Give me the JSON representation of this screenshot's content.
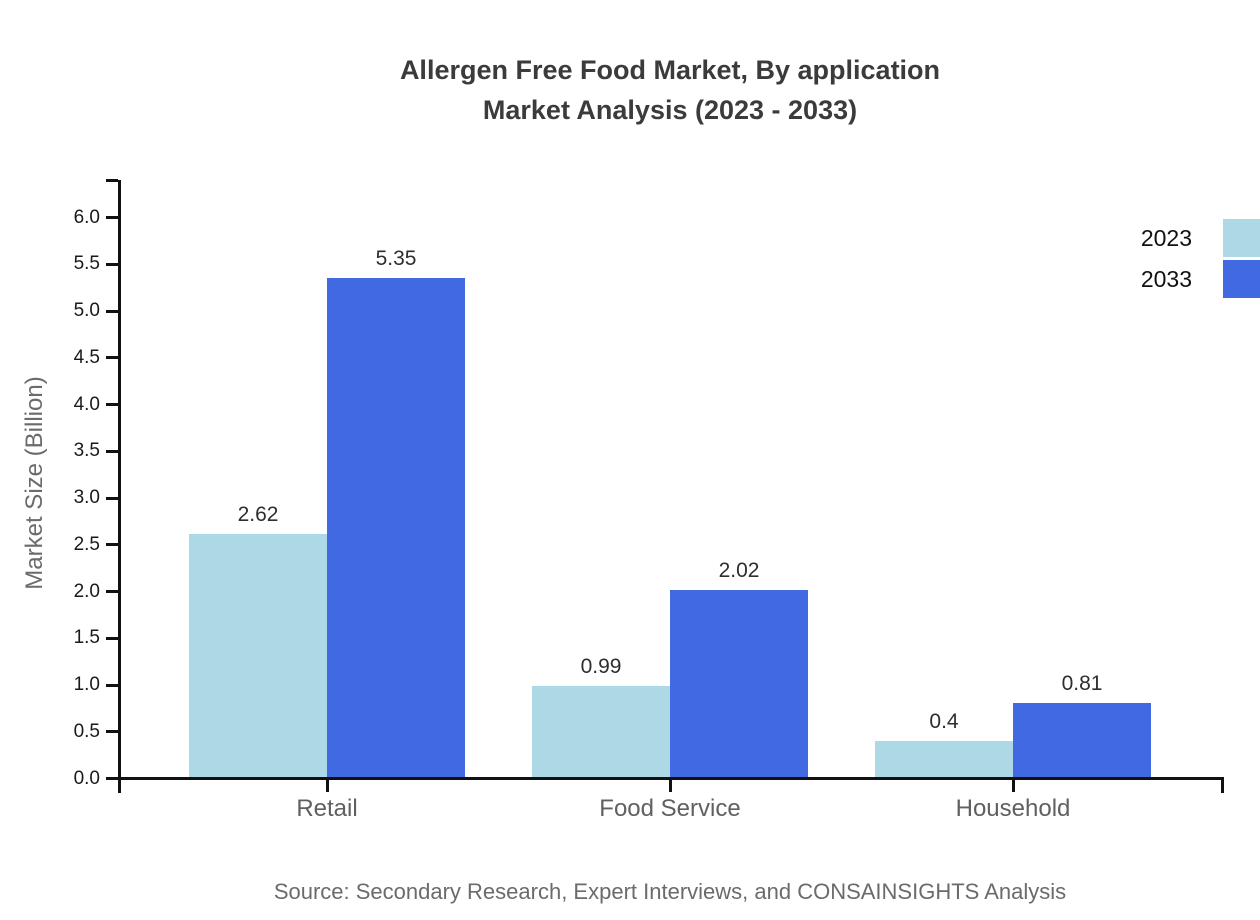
{
  "title": {
    "line1": "Allergen Free Food Market, By application",
    "line2": "Market Analysis (2023 - 2033)"
  },
  "source": "Source: Secondary Research, Expert Interviews, and CONSAINSIGHTS Analysis",
  "chart_data": {
    "type": "bar",
    "title": "Allergen Free Food Market, By application — Market Analysis (2023 - 2033)",
    "categories": [
      "Retail",
      "Food Service",
      "Household"
    ],
    "series": [
      {
        "name": "2023",
        "color": "#ADD8E6",
        "values": [
          2.62,
          0.99,
          0.4
        ],
        "labels": [
          "2.62",
          "0.99",
          "0.4"
        ]
      },
      {
        "name": "2033",
        "color": "#4169E1",
        "values": [
          5.35,
          2.02,
          0.81
        ],
        "labels": [
          "5.35",
          "2.02",
          "0.81"
        ]
      }
    ],
    "xlabel": "",
    "ylabel": "Market Size (Billion)",
    "ylim": [
      0,
      6.4
    ],
    "ytick_labels": [
      "0.0",
      "0.5",
      "1.0",
      "1.5",
      "2.0",
      "2.5",
      "3.0",
      "3.5",
      "4.0",
      "4.5",
      "5.0",
      "5.5",
      "6.0"
    ],
    "grid": false,
    "legend_position": "top-right",
    "axis_color": "#111111"
  }
}
